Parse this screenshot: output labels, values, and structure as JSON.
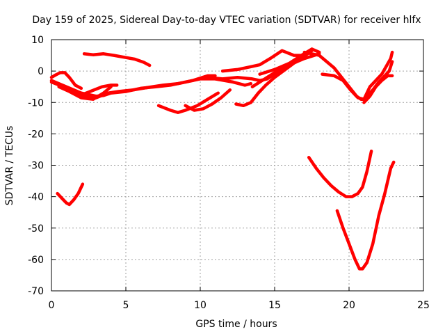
{
  "chart_data": {
    "type": "line",
    "title": "Day 159 of 2025, Sidereal Day-to-day VTEC variation (SDTVAR) for receiver hlfx",
    "xlabel": "GPS time / hours",
    "ylabel": "SDTVAR / TECUs",
    "xlim": [
      0,
      25
    ],
    "ylim": [
      -70,
      10
    ],
    "xticks": [
      0,
      5,
      10,
      15,
      20,
      25
    ],
    "yticks": [
      -70,
      -60,
      -50,
      -40,
      -30,
      -20,
      -10,
      0,
      10
    ],
    "xtick_labels": [
      "0",
      "5",
      "10",
      "15",
      "20",
      "25"
    ],
    "ytick_labels": [
      "-70",
      "-60",
      "-50",
      "-40",
      "-30",
      "-20",
      "-10",
      "0",
      "10"
    ],
    "grid": true,
    "color": "#ff0000",
    "series": [
      {
        "x": [
          0.4,
          0.7,
          1.0,
          1.2,
          1.5,
          1.8,
          2.1
        ],
        "y": [
          -39,
          -40.5,
          -42,
          -42.5,
          -41,
          -39,
          -36
        ]
      },
      {
        "x": [
          2.2,
          2.8,
          3.5,
          4.2,
          5.0,
          5.6,
          6.2,
          6.6
        ],
        "y": [
          5.5,
          5.2,
          5.5,
          5.0,
          4.3,
          3.8,
          2.8,
          1.8
        ]
      },
      {
        "x": [
          0,
          0.3,
          0.6,
          0.9,
          1.2,
          1.6,
          2.0
        ],
        "y": [
          -2,
          -1.2,
          -0.5,
          -0.5,
          -2,
          -4.5,
          -5.5
        ]
      },
      {
        "x": [
          0,
          0.5,
          1.0,
          1.5,
          2.0,
          2.5,
          3.0,
          3.5,
          4.0,
          5.0,
          6.0,
          7.0,
          8.0,
          9.0,
          10.0,
          11.0
        ],
        "y": [
          -3,
          -4,
          -5,
          -6,
          -7,
          -7.5,
          -8,
          -7.8,
          -7,
          -6.5,
          -5.5,
          -5,
          -4.5,
          -3.5,
          -2.5,
          -2.5
        ]
      },
      {
        "x": [
          0,
          0.8,
          1.5,
          2.2,
          3.0,
          3.8,
          4.5,
          5.5,
          6.5,
          7.5,
          8.5,
          9.5,
          10.5,
          11.0
        ],
        "y": [
          -3.5,
          -5,
          -6.5,
          -8,
          -8.5,
          -7,
          -6.5,
          -6,
          -5.2,
          -4.5,
          -4,
          -3,
          -1.5,
          -1.5
        ]
      },
      {
        "x": [
          0.5,
          1.2,
          2.0,
          2.8,
          3.5,
          4.0
        ],
        "y": [
          -5,
          -6.5,
          -8.5,
          -9,
          -7,
          -5
        ]
      },
      {
        "x": [
          1.8,
          2.6,
          3.4,
          4.0,
          4.4
        ],
        "y": [
          -8,
          -6.5,
          -5,
          -4.5,
          -4.5
        ]
      },
      {
        "x": [
          7.2,
          8.0,
          8.5,
          9.0,
          9.8,
          10.5,
          11.2
        ],
        "y": [
          -11,
          -12.5,
          -13.2,
          -12.5,
          -11,
          -9,
          -7
        ]
      },
      {
        "x": [
          9.0,
          9.6,
          10.2,
          10.8,
          11.4,
          12.0
        ],
        "y": [
          -11,
          -12.5,
          -12,
          -10.5,
          -8.5,
          -6
        ]
      },
      {
        "x": [
          11.0,
          11.6,
          12.2,
          12.6,
          13.0,
          13.4
        ],
        "y": [
          -2.5,
          -3,
          -3.5,
          -4,
          -4.5,
          -4
        ]
      },
      {
        "x": [
          10.5,
          11.5,
          12.5,
          13.5,
          14.0,
          14.5,
          15.0,
          16.0,
          17.0,
          18.0
        ],
        "y": [
          -2,
          -2.5,
          -2,
          -2.5,
          -3,
          -2.5,
          -1,
          2,
          4,
          5.5
        ]
      },
      {
        "x": [
          11.5,
          12.5,
          13.5,
          14.0,
          14.7,
          15.5,
          16.3,
          17.0
        ],
        "y": [
          0,
          0.5,
          1.5,
          2,
          4,
          6.5,
          5,
          5
        ]
      },
      {
        "x": [
          12.4,
          12.9,
          13.4,
          13.9,
          14.4,
          15.0,
          16.0,
          17.0,
          17.5
        ],
        "y": [
          -10.5,
          -11,
          -10,
          -7,
          -4.5,
          -2,
          1.5,
          5,
          7
        ]
      },
      {
        "x": [
          13.5,
          14.5,
          15.5,
          16.5,
          17.5
        ],
        "y": [
          -5,
          -2,
          1,
          3,
          6.5
        ]
      },
      {
        "x": [
          14.0,
          15.0,
          16.0,
          16.8,
          17.5,
          18.0
        ],
        "y": [
          -1,
          0.5,
          2.5,
          5,
          7,
          6
        ]
      },
      {
        "x": [
          17.0,
          18.0,
          18.5,
          19.0,
          19.5,
          20.0,
          20.5,
          20.8,
          21.2
        ],
        "y": [
          6,
          5,
          3,
          1,
          -2,
          -5,
          -8,
          -9,
          -9
        ]
      },
      {
        "x": [
          18.2,
          19.0,
          19.6,
          20.1,
          20.6,
          21.0
        ],
        "y": [
          -1,
          -1.5,
          -3,
          -6,
          -8.5,
          -9
        ]
      },
      {
        "x": [
          21.0,
          21.4,
          21.8,
          22.2,
          22.6,
          22.9
        ],
        "y": [
          -10,
          -8,
          -5,
          -3,
          -1.5,
          -1.5
        ]
      },
      {
        "x": [
          21.0,
          21.4,
          21.8,
          22.2,
          22.5,
          22.8,
          22.9
        ],
        "y": [
          -9,
          -5,
          -3,
          -1,
          1.5,
          4,
          6
        ]
      },
      {
        "x": [
          21.2,
          21.6,
          22.0,
          22.4,
          22.7,
          22.9
        ],
        "y": [
          -8,
          -6,
          -3.5,
          -1.5,
          0,
          3
        ]
      },
      {
        "x": [
          17.3,
          17.8,
          18.3,
          18.8,
          19.3,
          19.8,
          20.2,
          20.6,
          20.9,
          21.2,
          21.5
        ],
        "y": [
          -27.5,
          -31,
          -34,
          -36.5,
          -38.5,
          -40,
          -40,
          -39,
          -37,
          -32,
          -25.5
        ]
      },
      {
        "x": [
          19.2,
          19.6,
          20.0,
          20.4,
          20.7,
          20.9,
          21.2,
          21.6,
          22.0,
          22.4,
          22.8,
          23.0
        ],
        "y": [
          -44.5,
          -50,
          -55,
          -60,
          -63,
          -63,
          -61,
          -55,
          -46,
          -39,
          -31,
          -29
        ]
      }
    ]
  }
}
